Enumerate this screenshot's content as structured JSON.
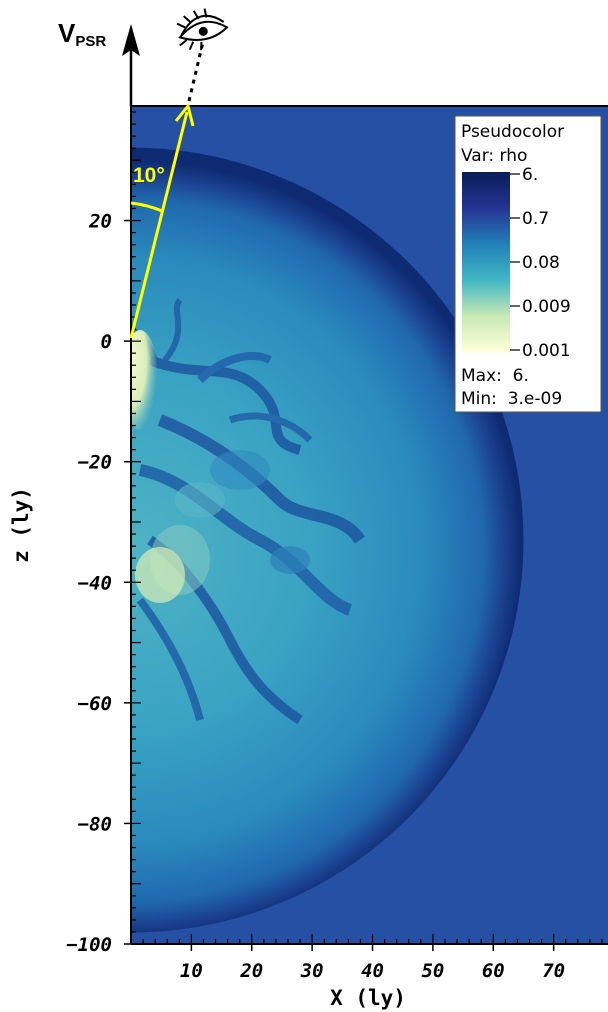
{
  "chart_data": {
    "type": "heatmap",
    "xlabel": "X (ly)",
    "ylabel": "z (ly)",
    "xlim": [
      0,
      79
    ],
    "ylim": [
      -100,
      39
    ],
    "x_ticks": [
      10,
      20,
      30,
      40,
      50,
      60,
      70
    ],
    "y_ticks": [
      20,
      0,
      -20,
      -40,
      -60,
      -80,
      -100
    ],
    "x_tick_labels": [
      "10",
      "20",
      "30",
      "40",
      "50",
      "60",
      "70"
    ],
    "y_tick_labels": [
      "20",
      "0",
      "-20",
      "-40",
      "-60",
      "-80",
      "-100"
    ],
    "variable": "rho",
    "shell": {
      "center_x": 0,
      "center_z": -33,
      "radius": 65
    },
    "colorbar": {
      "title": "Pseudocolor",
      "var_label": "Var: rho",
      "tick_labels": [
        "6.",
        "0.7",
        "0.08",
        "0.009",
        "0.001"
      ],
      "max_label": "Max:  6.",
      "min_label": "Min:  3.e-09",
      "colors": [
        "#081d58",
        "#225ea8",
        "#1d91c0",
        "#7fcdbb",
        "#edf8b1",
        "#ffffd9"
      ]
    },
    "annotations": {
      "velocity_label_main": "V",
      "velocity_label_sub": "PSR",
      "angle_label": "10°",
      "view_angle_deg": 10
    },
    "background_color": "#2550a3",
    "annotation_color": "#ffff00"
  }
}
